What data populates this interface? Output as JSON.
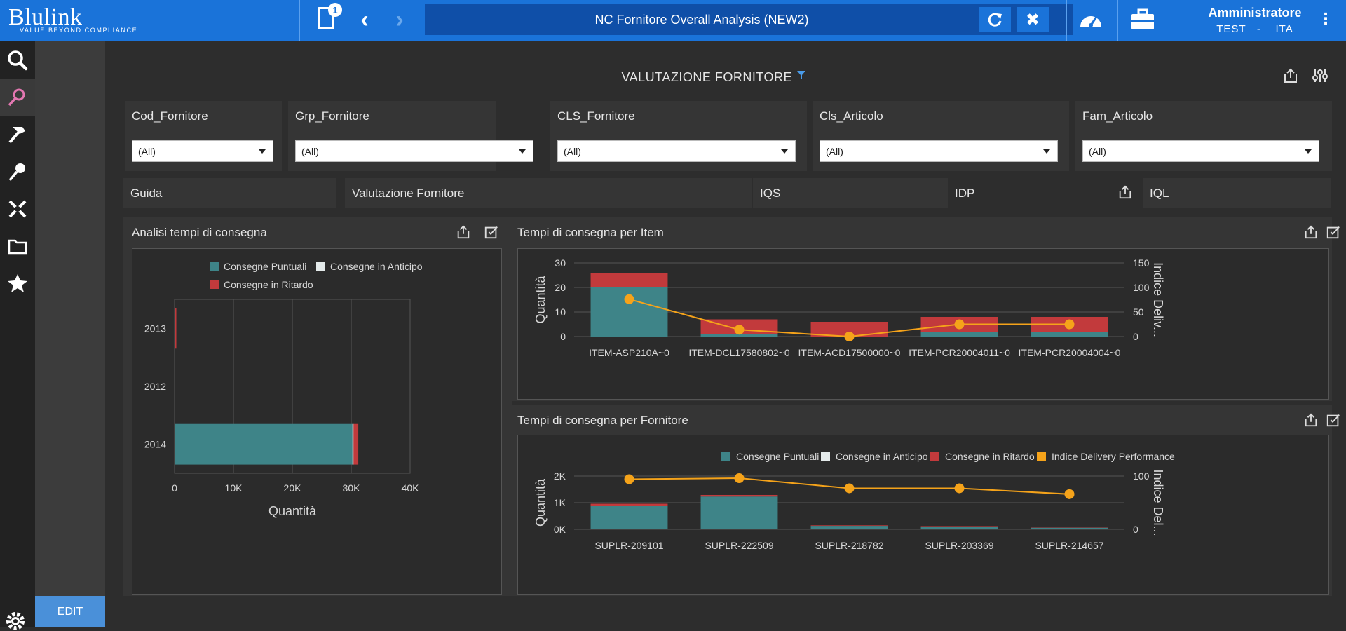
{
  "header": {
    "brand": "Blulink",
    "tagline": "VALUE BEYOND COMPLIANCE",
    "page_badge": "1",
    "title": "NC Fornitore Overall Analysis (NEW2)",
    "user_name": "Amministratore",
    "user_env": "TEST   -    ITA"
  },
  "sidebar": {
    "icons": [
      "search-icon",
      "analysis-icon",
      "hammer-icon",
      "pin-icon",
      "tools-icon",
      "folder-icon",
      "star-icon"
    ],
    "edit_label": "EDIT"
  },
  "dashboard": {
    "title": "VALUTAZIONE FORNITORE",
    "filters": [
      {
        "label": "Cod_Fornitore",
        "value": "(All)"
      },
      {
        "label": "Grp_Fornitore",
        "value": "(All)"
      },
      {
        "label": "CLS_Fornitore",
        "value": "(All)"
      },
      {
        "label": "Cls_Articolo",
        "value": "(All)"
      },
      {
        "label": "Fam_Articolo",
        "value": "(All)"
      }
    ],
    "tabs": [
      "Guida",
      "Valutazione Fornitore",
      "IQS",
      "IDP",
      "IQL"
    ]
  },
  "colors": {
    "puntuali": "#3e8488",
    "anticipo": "#e4eaea",
    "ritardo": "#c23a3c",
    "indice": "#f5a31a"
  },
  "panels": {
    "left_title": "Analisi tempi di consegna",
    "item_title": "Tempi di consegna per Item",
    "forn_title": "Tempi di consegna per Fornitore"
  },
  "chart_data": [
    {
      "type": "bar",
      "orientation": "horizontal",
      "title": "Analisi tempi di consegna",
      "categories": [
        "2013",
        "2012",
        "2014"
      ],
      "series": [
        {
          "name": "Consegne Puntuali",
          "values": [
            0,
            0,
            30200
          ]
        },
        {
          "name": "Consegne in Anticipo",
          "values": [
            0,
            0,
            200
          ]
        },
        {
          "name": "Consegne in Ritardo",
          "values": [
            300,
            0,
            800
          ]
        }
      ],
      "xlabel": "Quantità",
      "xlim": [
        0,
        40000
      ],
      "xticks": [
        "0",
        "10K",
        "20K",
        "30K",
        "40K"
      ],
      "legend": "top"
    },
    {
      "type": "bar",
      "stacked": true,
      "title": "Tempi di consegna per Item",
      "categories": [
        "ITEM-ASP210A~0",
        "ITEM-DCL17580802~0",
        "ITEM-ACD17500000~0",
        "ITEM-PCR20004011~0",
        "ITEM-PCR20004004~0"
      ],
      "series": [
        {
          "name": "Consegne Puntuali",
          "values": [
            20,
            1,
            0,
            2,
            2
          ]
        },
        {
          "name": "Consegne in Ritardo",
          "values": [
            6,
            6,
            6,
            6,
            6
          ]
        },
        {
          "name": "Indice Delivery Performance",
          "type": "line",
          "axis": "right",
          "values": [
            76,
            14,
            0,
            25,
            25
          ]
        }
      ],
      "ylabel": "Quantità",
      "ylim": [
        0,
        30
      ],
      "yticks": [
        "0",
        "10",
        "20",
        "30"
      ],
      "y2label": "Indice Deliv...",
      "y2lim": [
        0,
        150
      ],
      "y2ticks": [
        "0",
        "50",
        "100",
        "150"
      ]
    },
    {
      "type": "bar",
      "stacked": true,
      "title": "Tempi di consegna per Fornitore",
      "categories": [
        "SUPLR-209101",
        "SUPLR-222509",
        "SUPLR-218782",
        "SUPLR-203369",
        "SUPLR-214657"
      ],
      "series": [
        {
          "name": "Consegne Puntuali",
          "values": [
            880,
            1230,
            130,
            100,
            60
          ]
        },
        {
          "name": "Consegne in Anticipo",
          "values": [
            0,
            0,
            0,
            0,
            0
          ]
        },
        {
          "name": "Consegne in Ritardo",
          "values": [
            80,
            60,
            20,
            20,
            10
          ]
        },
        {
          "name": "Indice Delivery Performance",
          "type": "line",
          "axis": "right",
          "values": [
            94,
            96,
            77,
            77,
            66
          ]
        }
      ],
      "ylabel": "Quantità",
      "ylim": [
        0,
        2000
      ],
      "yticks": [
        "0K",
        "1K",
        "2K"
      ],
      "y2label": "Indice Del...",
      "y2lim": [
        0,
        100
      ],
      "y2ticks": [
        "0",
        "100"
      ],
      "legend": "top-right"
    }
  ]
}
